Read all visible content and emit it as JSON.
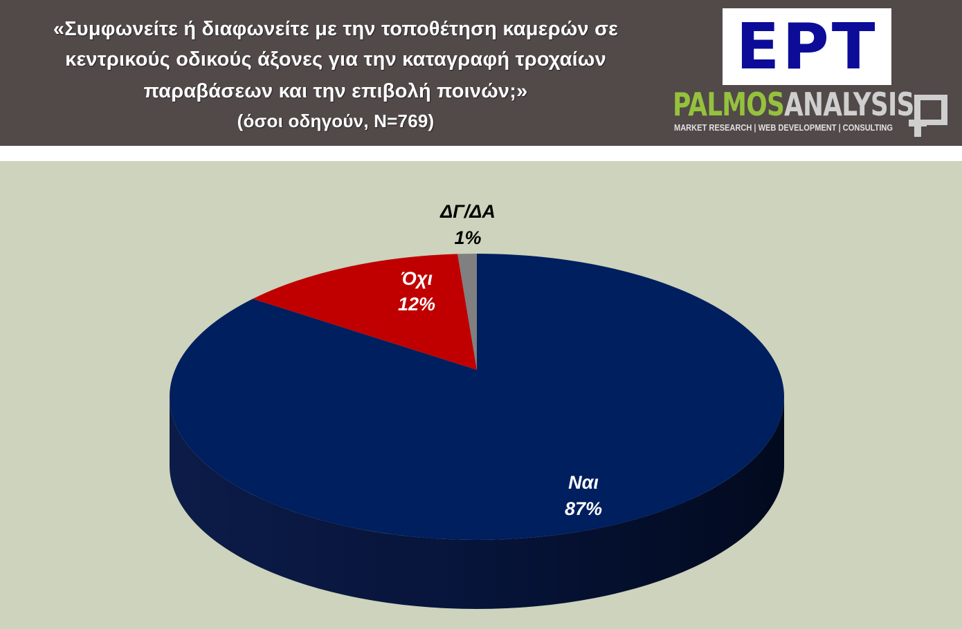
{
  "header": {
    "title_lines": [
      "«Συμφωνείτε ή διαφωνείτε με την τοποθέτηση καμερών σε",
      "κεντρικούς οδικούς άξονες για την καταγραφή τροχαίων",
      "παραβάσεων και την επιβολή ποινών;»"
    ],
    "subtitle": "(όσοι οδηγούν, N=769)"
  },
  "logos": {
    "ert": "ΕΡΤ",
    "palmos_green": "PALMOS",
    "palmos_gray": "ANALYSIS",
    "palmos_tagline": "MARKET RESEARCH | WEB DEVELOPMENT | CONSULTING"
  },
  "chart_data": {
    "type": "pie",
    "style": "3d",
    "start": "12 o'clock, clockwise",
    "categories": [
      "Ναι",
      "Όχι",
      "ΔΓ/ΔΑ"
    ],
    "values": [
      87,
      12,
      1
    ],
    "labels": [
      "87%",
      "12%",
      "1%"
    ],
    "colors": [
      "#001f5f",
      "#c00000",
      "#808080"
    ],
    "label_colors": [
      "#ffffff",
      "#ffffff",
      "#000000"
    ],
    "legend": "none"
  }
}
